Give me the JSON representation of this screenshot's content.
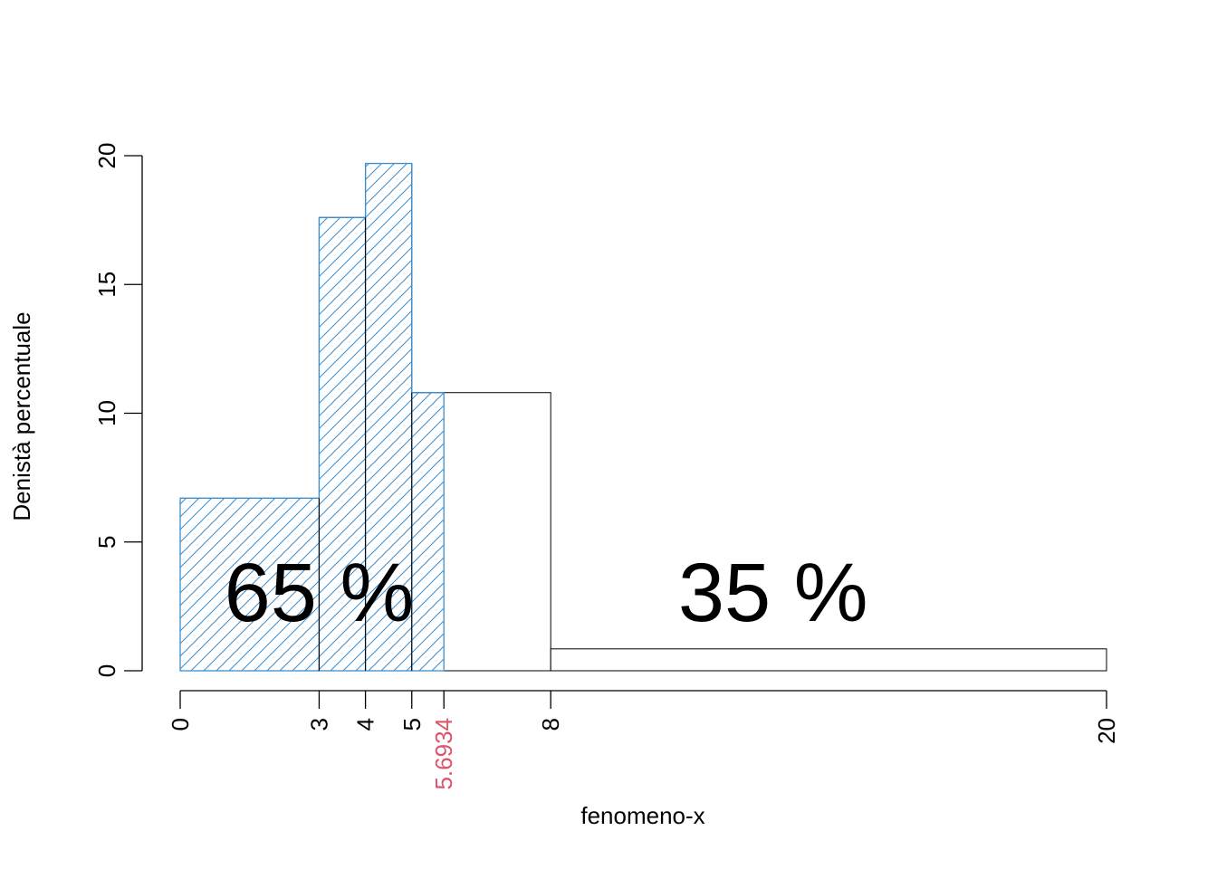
{
  "chart_data": {
    "type": "bar",
    "title": "",
    "xlabel": "fenomeno-x",
    "ylabel": "Denistà percentuale",
    "bins": [
      {
        "from": 0,
        "to": 3,
        "density": 6.7
      },
      {
        "from": 3,
        "to": 4,
        "density": 17.6
      },
      {
        "from": 4,
        "to": 5,
        "density": 19.7
      },
      {
        "from": 5,
        "to": 8,
        "density": 10.8
      },
      {
        "from": 8,
        "to": 20,
        "density": 0.85
      }
    ],
    "cutoff": 5.6934,
    "cutoff_label": "5.6934",
    "x_ticks": [
      0,
      3,
      4,
      5,
      8,
      20
    ],
    "x_tick_labels": [
      "0",
      "3",
      "4",
      "5",
      "8",
      "20"
    ],
    "y_ticks": [
      0,
      5,
      10,
      15,
      20
    ],
    "y_tick_labels": [
      "0",
      "5",
      "10",
      "15",
      "20"
    ],
    "xlim": [
      0,
      20
    ],
    "ylim": [
      0,
      20
    ],
    "annotations": [
      {
        "text": "65 %",
        "x": 3,
        "y": 2
      },
      {
        "text": "35 %",
        "x": 12.8,
        "y": 2
      }
    ],
    "grid": false,
    "colors": {
      "shaded": "#3A8FD0",
      "outline": "#000000",
      "cutoff_label": "#DF536B"
    }
  }
}
